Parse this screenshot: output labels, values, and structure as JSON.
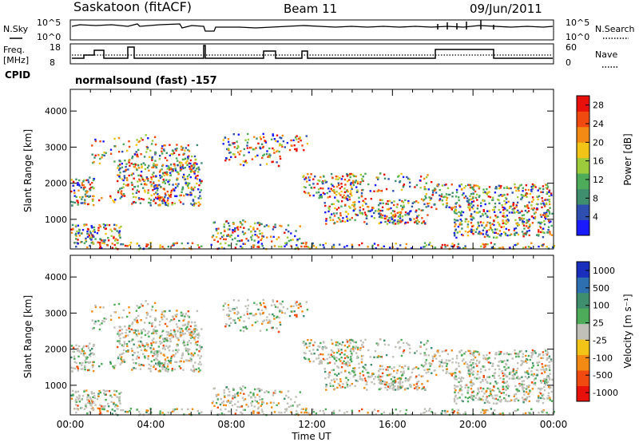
{
  "header": {
    "station": "Saskatoon (fitACF)",
    "beam": "Beam 11",
    "date": "09/Jun/2011"
  },
  "status_panel": {
    "nsky_label": "N.Sky",
    "nsky_ticks": [
      "10^5",
      "10^0"
    ],
    "nsearch_label": "N.Search",
    "nsearch_ticks": [
      "10^5",
      "10^0"
    ],
    "freq_label": "Freq.",
    "freq_unit": "[MHz]",
    "freq_ticks": [
      "18",
      "8"
    ],
    "nave_label": "Nave",
    "nave_ticks": [
      "60",
      "0"
    ],
    "cpid_label": "CPID",
    "cpid_text": "normalsound (fast) -157"
  },
  "colors": {
    "power": [
      "#1a1aff",
      "#2e4fb0",
      "#3f8f6e",
      "#4dab5a",
      "#9ccc3c",
      "#f2c418",
      "#f28a14",
      "#f04a10",
      "#e8100a"
    ],
    "velocity": [
      "#1a2ebd",
      "#2e6fb0",
      "#3f8f6e",
      "#4dab5a",
      "#c0c0b8",
      "#f2c418",
      "#f28a14",
      "#f04a10",
      "#e8100a"
    ]
  },
  "chart_data": [
    {
      "type": "heatmap",
      "ylabel": "Slant Range [km]",
      "xlabel": "",
      "x_ticks": [
        "00:00",
        "04:00",
        "08:00",
        "12:00",
        "16:00",
        "20:00",
        "00:00"
      ],
      "y_ticks": [
        "1000",
        "2000",
        "3000",
        "4000"
      ],
      "ylim": [
        180,
        4600
      ],
      "colorbar_label": "Power [dB]",
      "colorbar_ticks": [
        "4",
        "8",
        "12",
        "16",
        "20",
        "24",
        "28"
      ],
      "clim": [
        0,
        30
      ]
    },
    {
      "type": "heatmap",
      "ylabel": "Slant Range [km]",
      "xlabel": "Time UT",
      "x_ticks": [
        "00:00",
        "04:00",
        "08:00",
        "12:00",
        "16:00",
        "20:00",
        "00:00"
      ],
      "y_ticks": [
        "1000",
        "2000",
        "3000",
        "4000"
      ],
      "ylim": [
        180,
        4600
      ],
      "colorbar_label": "Velocity [m s⁻¹]",
      "colorbar_ticks": [
        "1000",
        "500",
        "100",
        "25",
        "-25",
        "-100",
        "-500",
        "-1000"
      ]
    }
  ]
}
